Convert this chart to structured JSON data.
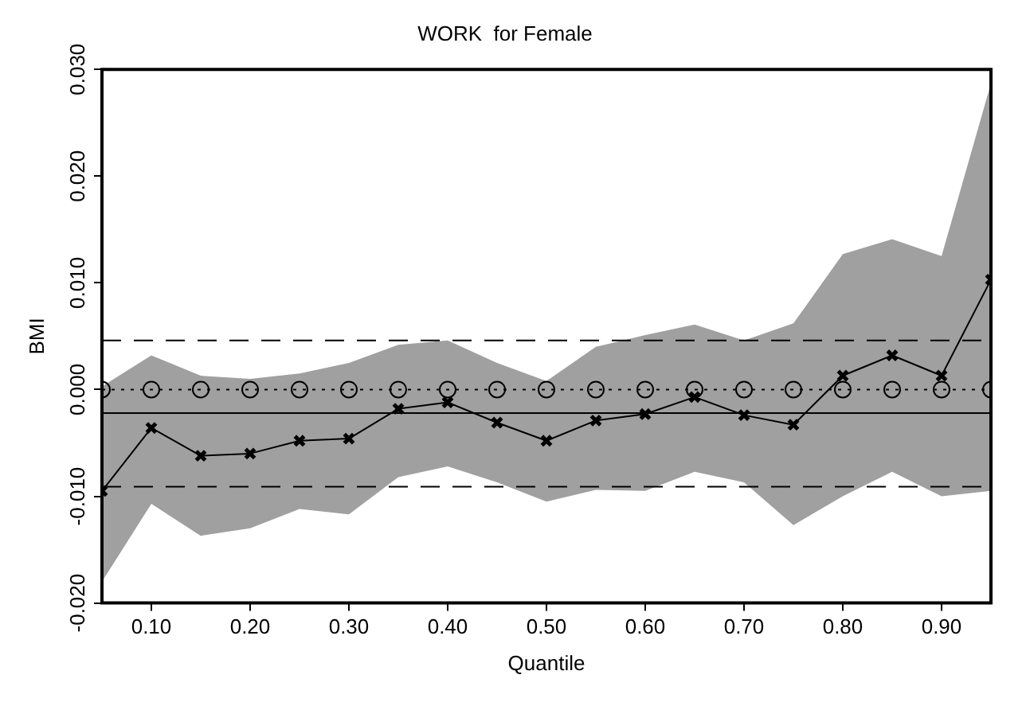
{
  "chart_data": {
    "type": "line",
    "title": "WORK  for Female",
    "xlabel": "Quantile",
    "ylabel": "BMI",
    "x": [
      0.05,
      0.1,
      0.15,
      0.2,
      0.25,
      0.3,
      0.35,
      0.4,
      0.45,
      0.5,
      0.55,
      0.6,
      0.65,
      0.7,
      0.75,
      0.8,
      0.85,
      0.9,
      0.95
    ],
    "series": [
      {
        "color": "#000000",
        "marker": "cross",
        "line_style": "solid",
        "values": [
          -0.0095,
          -0.0036,
          -0.0062,
          -0.006,
          -0.0048,
          -0.0046,
          -0.0018,
          -0.0012,
          -0.0031,
          -0.0048,
          -0.0029,
          -0.0023,
          -0.0007,
          -0.0024,
          -0.0033,
          0.0013,
          0.0032,
          0.0013,
          0.0103
        ],
        "lower": [
          -0.018,
          -0.0107,
          -0.0137,
          -0.013,
          -0.0112,
          -0.0117,
          -0.0082,
          -0.0072,
          -0.0087,
          -0.0105,
          -0.0094,
          -0.0095,
          -0.0077,
          -0.0087,
          -0.0127,
          -0.01,
          -0.0077,
          -0.01,
          -0.0095
        ],
        "upper": [
          0.0003,
          0.0032,
          0.0013,
          0.001,
          0.0015,
          0.0025,
          0.0042,
          0.0046,
          0.0025,
          0.0008,
          0.004,
          0.0051,
          0.0061,
          0.0046,
          0.0062,
          0.0127,
          0.0141,
          0.0125,
          0.0287
        ]
      },
      {
        "color": "#000000",
        "marker": "circle",
        "line_style": "dotted",
        "values": [
          0,
          0,
          0,
          0,
          0,
          0,
          0,
          0,
          0,
          0,
          0,
          0,
          0,
          0,
          0,
          0,
          0,
          0,
          0
        ]
      }
    ],
    "ref_lines": [
      {
        "axis": "y",
        "value": -0.0022,
        "color": "#000000",
        "line_style": "solid"
      },
      {
        "axis": "y",
        "value": 0.0046,
        "color": "#000000",
        "line_style": "dashed"
      },
      {
        "axis": "y",
        "value": -0.0091,
        "color": "#000000",
        "line_style": "dashed"
      }
    ],
    "xlim": [
      0.05,
      0.95
    ],
    "xticks": [
      {
        "value": 0.1,
        "label": "0.10"
      },
      {
        "value": 0.2,
        "label": "0.20"
      },
      {
        "value": 0.3,
        "label": "0.30"
      },
      {
        "value": 0.4,
        "label": "0.40"
      },
      {
        "value": 0.5,
        "label": "0.50"
      },
      {
        "value": 0.6,
        "label": "0.60"
      },
      {
        "value": 0.7,
        "label": "0.70"
      },
      {
        "value": 0.8,
        "label": "0.80"
      },
      {
        "value": 0.9,
        "label": "0.90"
      }
    ],
    "ylim": [
      -0.02,
      0.03
    ],
    "yticks": [
      {
        "value": -0.02,
        "label": "-0.020"
      },
      {
        "value": -0.01,
        "label": "-0.010"
      },
      {
        "value": 0,
        "label": "0.000"
      },
      {
        "value": 0.01,
        "label": "0.010"
      },
      {
        "value": 0.02,
        "label": "0.020"
      },
      {
        "value": 0.03,
        "label": "0.030"
      }
    ],
    "grid": false,
    "legend": false
  }
}
